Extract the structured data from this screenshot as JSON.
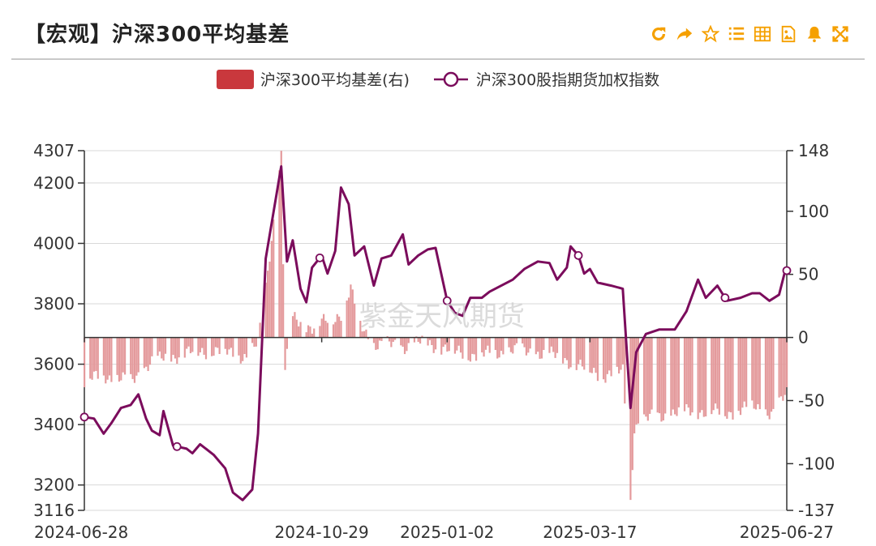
{
  "header": {
    "title": "【宏观】沪深300平均基差"
  },
  "toolbar": [
    {
      "icon": "refresh-icon"
    },
    {
      "icon": "share-icon"
    },
    {
      "icon": "star-icon"
    },
    {
      "icon": "list-icon"
    },
    {
      "icon": "table-icon"
    },
    {
      "icon": "image-icon"
    },
    {
      "icon": "bell-icon"
    },
    {
      "icon": "fullscreen-icon"
    }
  ],
  "colors": {
    "accent": "#f5a000",
    "bar": "#e08b8e",
    "bar_legend": "#c9383d",
    "line": "#7b0c5c"
  },
  "watermark": "紫金天风期货",
  "chart_data": {
    "type": "bar+line",
    "legend": [
      "沪深300平均基差(右)",
      "沪深300股指期货加权指数"
    ],
    "x_ticks": [
      "2024-06-28",
      "2024-10-29",
      "2025-01-02",
      "2025-03-17",
      "2025-06-27"
    ],
    "y_left": {
      "min": 3116,
      "max": 4307,
      "ticks": [
        3116,
        3200,
        3400,
        3600,
        3800,
        4000,
        4200,
        4307
      ]
    },
    "y_right": {
      "min": -137,
      "max": 148,
      "ticks": [
        -137,
        -100,
        -50,
        0,
        50,
        100,
        148
      ]
    },
    "line_keypoints": [
      [
        "2024-06-28",
        3425
      ],
      [
        "2024-07-03",
        3420
      ],
      [
        "2024-07-08",
        3370
      ],
      [
        "2024-07-12",
        3405
      ],
      [
        "2024-07-17",
        3455
      ],
      [
        "2024-07-22",
        3465
      ],
      [
        "2024-07-26",
        3500
      ],
      [
        "2024-07-30",
        3420
      ],
      [
        "2024-08-02",
        3380
      ],
      [
        "2024-08-06",
        3365
      ],
      [
        "2024-08-08",
        3445
      ],
      [
        "2024-08-13",
        3330
      ],
      [
        "2024-08-20",
        3320
      ],
      [
        "2024-08-23",
        3305
      ],
      [
        "2024-08-27",
        3335
      ],
      [
        "2024-09-03",
        3300
      ],
      [
        "2024-09-09",
        3255
      ],
      [
        "2024-09-13",
        3175
      ],
      [
        "2024-09-18",
        3150
      ],
      [
        "2024-09-23",
        3185
      ],
      [
        "2024-09-26",
        3370
      ],
      [
        "2024-09-30",
        3950
      ],
      [
        "2024-10-08",
        4255
      ],
      [
        "2024-10-11",
        3940
      ],
      [
        "2024-10-14",
        4010
      ],
      [
        "2024-10-18",
        3850
      ],
      [
        "2024-10-21",
        3805
      ],
      [
        "2024-10-24",
        3920
      ],
      [
        "2024-10-29",
        3960
      ],
      [
        "2024-11-01",
        3900
      ],
      [
        "2024-11-05",
        3975
      ],
      [
        "2024-11-08",
        4185
      ],
      [
        "2024-11-12",
        4130
      ],
      [
        "2024-11-15",
        3960
      ],
      [
        "2024-11-20",
        3990
      ],
      [
        "2024-11-25",
        3860
      ],
      [
        "2024-11-29",
        3950
      ],
      [
        "2024-12-04",
        3960
      ],
      [
        "2024-12-10",
        4030
      ],
      [
        "2024-12-13",
        3930
      ],
      [
        "2024-12-18",
        3960
      ],
      [
        "2024-12-23",
        3980
      ],
      [
        "2024-12-27",
        3985
      ],
      [
        "2025-01-02",
        3810
      ],
      [
        "2025-01-06",
        3770
      ],
      [
        "2025-01-10",
        3760
      ],
      [
        "2025-01-14",
        3820
      ],
      [
        "2025-01-20",
        3820
      ],
      [
        "2025-01-24",
        3840
      ],
      [
        "2025-02-05",
        3880
      ],
      [
        "2025-02-11",
        3915
      ],
      [
        "2025-02-18",
        3940
      ],
      [
        "2025-02-24",
        3935
      ],
      [
        "2025-02-28",
        3880
      ],
      [
        "2025-03-05",
        3920
      ],
      [
        "2025-03-07",
        3990
      ],
      [
        "2025-03-11",
        3960
      ],
      [
        "2025-03-14",
        3900
      ],
      [
        "2025-03-17",
        3915
      ],
      [
        "2025-03-21",
        3870
      ],
      [
        "2025-03-28",
        3860
      ],
      [
        "2025-04-03",
        3850
      ],
      [
        "2025-04-07",
        3455
      ],
      [
        "2025-04-10",
        3640
      ],
      [
        "2025-04-15",
        3700
      ],
      [
        "2025-04-22",
        3715
      ],
      [
        "2025-04-30",
        3715
      ],
      [
        "2025-05-06",
        3775
      ],
      [
        "2025-05-12",
        3880
      ],
      [
        "2025-05-16",
        3820
      ],
      [
        "2025-05-22",
        3860
      ],
      [
        "2025-05-27",
        3810
      ],
      [
        "2025-06-03",
        3820
      ],
      [
        "2025-06-09",
        3835
      ],
      [
        "2025-06-13",
        3835
      ],
      [
        "2025-06-18",
        3810
      ],
      [
        "2025-06-23",
        3830
      ],
      [
        "2025-06-26",
        3905
      ],
      [
        "2025-06-27",
        3910
      ]
    ],
    "line_markers": [
      "2024-06-28",
      "2024-08-15",
      "2024-10-28",
      "2025-01-02",
      "2025-03-11",
      "2025-05-26",
      "2025-06-27"
    ],
    "basis_keypoints": [
      [
        "2024-06-28",
        -35
      ],
      [
        "2024-07-08",
        -30
      ],
      [
        "2024-07-22",
        -35
      ],
      [
        "2024-08-01",
        -20
      ],
      [
        "2024-08-15",
        -14
      ],
      [
        "2024-09-02",
        -10
      ],
      [
        "2024-09-20",
        -15
      ],
      [
        "2024-09-26",
        -5
      ],
      [
        "2024-09-30",
        40
      ],
      [
        "2024-10-08",
        145
      ],
      [
        "2024-10-10",
        -25
      ],
      [
        "2024-10-14",
        15
      ],
      [
        "2024-10-24",
        8
      ],
      [
        "2024-11-04",
        15
      ],
      [
        "2024-11-08",
        20
      ],
      [
        "2024-11-13",
        38
      ],
      [
        "2024-11-18",
        10
      ],
      [
        "2024-11-25",
        -5
      ],
      [
        "2024-12-10",
        -7
      ],
      [
        "2024-12-20",
        -4
      ],
      [
        "2024-12-31",
        -8
      ],
      [
        "2025-01-06",
        -12
      ],
      [
        "2025-01-20",
        -14
      ],
      [
        "2025-02-05",
        -10
      ],
      [
        "2025-02-18",
        -12
      ],
      [
        "2025-03-03",
        -16
      ],
      [
        "2025-03-14",
        -25
      ],
      [
        "2025-03-25",
        -30
      ],
      [
        "2025-04-03",
        -27
      ],
      [
        "2025-04-07",
        -130
      ],
      [
        "2025-04-09",
        -70
      ],
      [
        "2025-04-15",
        -65
      ],
      [
        "2025-04-28",
        -60
      ],
      [
        "2025-05-12",
        -58
      ],
      [
        "2025-05-26",
        -60
      ],
      [
        "2025-06-10",
        -55
      ],
      [
        "2025-06-20",
        -60
      ],
      [
        "2025-06-27",
        -45
      ]
    ]
  }
}
